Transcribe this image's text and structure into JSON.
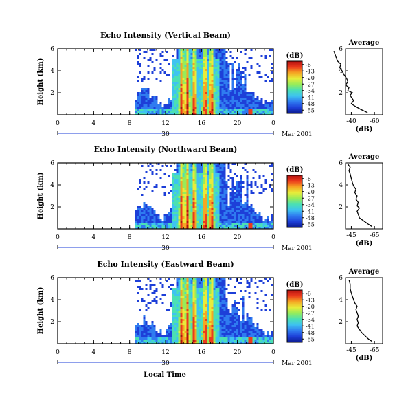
{
  "page": {
    "xlabel": "Local Time",
    "date_label": "Mar 2001",
    "day_label": "30"
  },
  "colors": {
    "scale": [
      "#0a1a8f",
      "#1d3fd8",
      "#2f7bf0",
      "#3ec3f0",
      "#4be0b4",
      "#96ec5a",
      "#e8ec3a",
      "#f5a623",
      "#ec3a1c",
      "#b31010"
    ],
    "background": "#ffffff",
    "axis": "#000000",
    "profile_line": "#000000"
  },
  "chart_data": [
    {
      "type": "heatmap",
      "title": "Echo Intensity (Vertical Beam)",
      "ylabel": "Height (km)",
      "xlabel": "Local Time",
      "x_ticks": [
        "0",
        "4",
        "8",
        "12",
        "16",
        "20",
        "0"
      ],
      "x_range": [
        0,
        24
      ],
      "y_ticks": [
        "2",
        "4",
        "6"
      ],
      "y_range": [
        0,
        6
      ],
      "data_start_hour": 8.6,
      "grid": false,
      "colorbar": {
        "label": "(dB)",
        "ticks": [
          "-6",
          "-13",
          "-20",
          "-27",
          "-34",
          "-41",
          "-48",
          "-55"
        ],
        "range": [
          -55,
          -6
        ]
      },
      "profile": {
        "title": "Average",
        "xlabel": "(dB)",
        "x_ticks": [
          "-40",
          "-60"
        ],
        "x_values": [
          -40,
          -60
        ],
        "y_ticks": [
          "2",
          "4",
          "6"
        ],
        "height_km": [
          0.2,
          0.5,
          0.8,
          1.0,
          1.3,
          1.6,
          1.8,
          2.0,
          2.2,
          2.5,
          2.7,
          3.0,
          3.3,
          3.6,
          4.0,
          4.3,
          4.6,
          4.9,
          5.2,
          5.5,
          5.8
        ],
        "avg_db": [
          -54,
          -48,
          -43,
          -40,
          -42,
          -40,
          -39,
          -41,
          -37,
          -38,
          -35,
          -37,
          -36,
          -34,
          -32,
          -30,
          -31,
          -28,
          -27,
          -26,
          -25
        ]
      }
    },
    {
      "type": "heatmap",
      "title": "Echo Intensity (Northward Beam)",
      "ylabel": "Height (km)",
      "xlabel": "Local Time",
      "x_ticks": [
        "0",
        "4",
        "8",
        "12",
        "16",
        "20",
        "0"
      ],
      "x_range": [
        0,
        24
      ],
      "y_ticks": [
        "2",
        "4",
        "6"
      ],
      "y_range": [
        0,
        6
      ],
      "data_start_hour": 8.6,
      "grid": false,
      "colorbar": {
        "label": "(dB)",
        "ticks": [
          "-6",
          "-13",
          "-20",
          "-27",
          "-34",
          "-41",
          "-48",
          "-55"
        ],
        "range": [
          -55,
          -6
        ]
      },
      "profile": {
        "title": "Average",
        "xlabel": "(dB)",
        "x_ticks": [
          "-45",
          "-65"
        ],
        "x_values": [
          -45,
          -65
        ],
        "y_ticks": [
          "2",
          "4",
          "6"
        ],
        "height_km": [
          0.2,
          0.4,
          0.7,
          1.0,
          1.3,
          1.6,
          1.9,
          2.1,
          2.4,
          2.7,
          3.0,
          3.3,
          3.6,
          3.9,
          4.2,
          4.6,
          5.0,
          5.3,
          5.6,
          5.9
        ],
        "avg_db": [
          -63,
          -60,
          -56,
          -52,
          -51,
          -50,
          -52,
          -50,
          -51,
          -49,
          -50,
          -48,
          -49,
          -47,
          -46,
          -45,
          -44,
          -43,
          -44,
          -42
        ]
      }
    },
    {
      "type": "heatmap",
      "title": "Echo Intensity (Eastward Beam)",
      "ylabel": "Height (km)",
      "xlabel": "Local Time",
      "x_ticks": [
        "0",
        "4",
        "8",
        "12",
        "16",
        "20",
        "0"
      ],
      "x_range": [
        0,
        24
      ],
      "y_ticks": [
        "2",
        "4",
        "6"
      ],
      "y_range": [
        0,
        6
      ],
      "data_start_hour": 8.6,
      "grid": false,
      "colorbar": {
        "label": "(dB)",
        "ticks": [
          "-6",
          "-13",
          "-20",
          "-27",
          "-34",
          "-41",
          "-48",
          "-55"
        ],
        "range": [
          -55,
          -6
        ]
      },
      "profile": {
        "title": "Average",
        "xlabel": "(dB)",
        "x_ticks": [
          "-45",
          "-65"
        ],
        "x_values": [
          -45,
          -65
        ],
        "y_ticks": [
          "2",
          "4",
          "6"
        ],
        "height_km": [
          0.2,
          0.4,
          0.7,
          1.0,
          1.3,
          1.6,
          1.9,
          2.2,
          2.5,
          2.8,
          3.1,
          3.4,
          3.7,
          4.0,
          4.3,
          4.6,
          5.0,
          5.4,
          5.8
        ],
        "avg_db": [
          -63,
          -60,
          -57,
          -54,
          -52,
          -50,
          -51,
          -50,
          -51,
          -50,
          -49,
          -50,
          -48,
          -47,
          -46,
          -45,
          -44,
          -44,
          -43
        ]
      }
    }
  ]
}
